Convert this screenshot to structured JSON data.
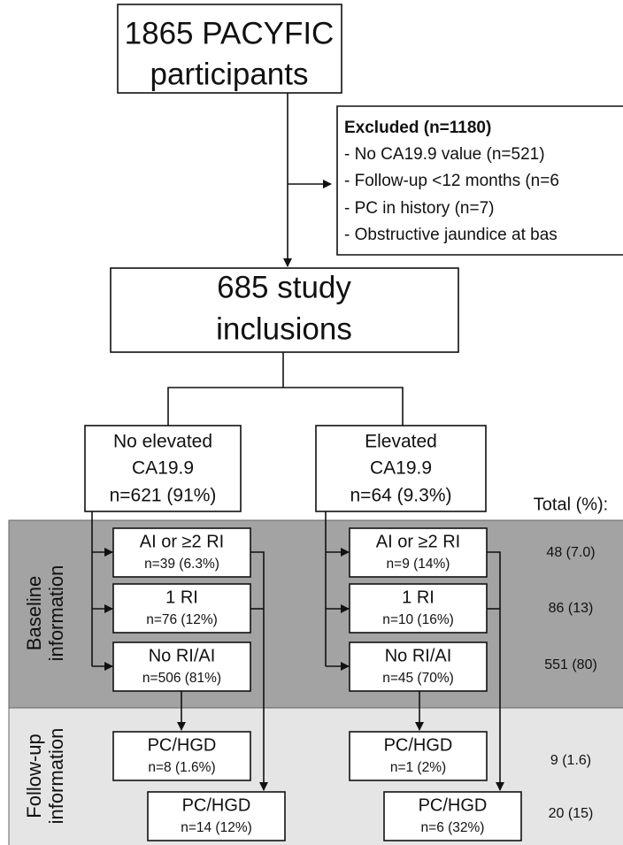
{
  "start": {
    "lines": [
      "1865 PACYFIC",
      "participants"
    ]
  },
  "excluded": {
    "title": "Excluded (n=1180)",
    "items": [
      "- No CA19.9 value (n=521)",
      "- Follow-up <12 months (n=6",
      "- PC in history (n=7)",
      "- Obstructive jaundice at bas"
    ]
  },
  "inclusions": {
    "lines": [
      "685 study",
      "inclusions"
    ]
  },
  "groups": [
    {
      "lines": [
        "No elevated",
        "CA19.9",
        "n=621 (91%)"
      ],
      "baseline": [
        {
          "label": "AI or ≥2 RI",
          "n": "n=39 (6.3%)"
        },
        {
          "label": "1 RI",
          "n": "n=76 (12%)"
        },
        {
          "label": "No RI/AI",
          "n": "n=506 (81%)"
        }
      ],
      "follow_up": [
        {
          "label": "PC/HGD",
          "n": "n=8 (1.6%)"
        },
        {
          "label": "PC/HGD",
          "n": "n=14 (12%)"
        }
      ]
    },
    {
      "lines": [
        "Elevated",
        "CA19.9",
        "n=64 (9.3%)"
      ],
      "baseline": [
        {
          "label": "AI or ≥2 RI",
          "n": "n=9 (14%)"
        },
        {
          "label": "1 RI",
          "n": "n=10 (16%)"
        },
        {
          "label": "No RI/AI",
          "n": "n=45 (70%)"
        }
      ],
      "follow_up": [
        {
          "label": "PC/HGD",
          "n": "n=1 (2%)"
        },
        {
          "label": "PC/HGD",
          "n": "n=6 (32%)"
        }
      ]
    }
  ],
  "totals": {
    "header": "Total (%):",
    "values": [
      "48 (7.0)",
      "86 (13)",
      "551 (80)",
      "9 (1.6)",
      "20 (15)"
    ]
  },
  "sections": [
    [
      "Baseline",
      "information"
    ],
    [
      "Follow-up",
      "information"
    ]
  ]
}
